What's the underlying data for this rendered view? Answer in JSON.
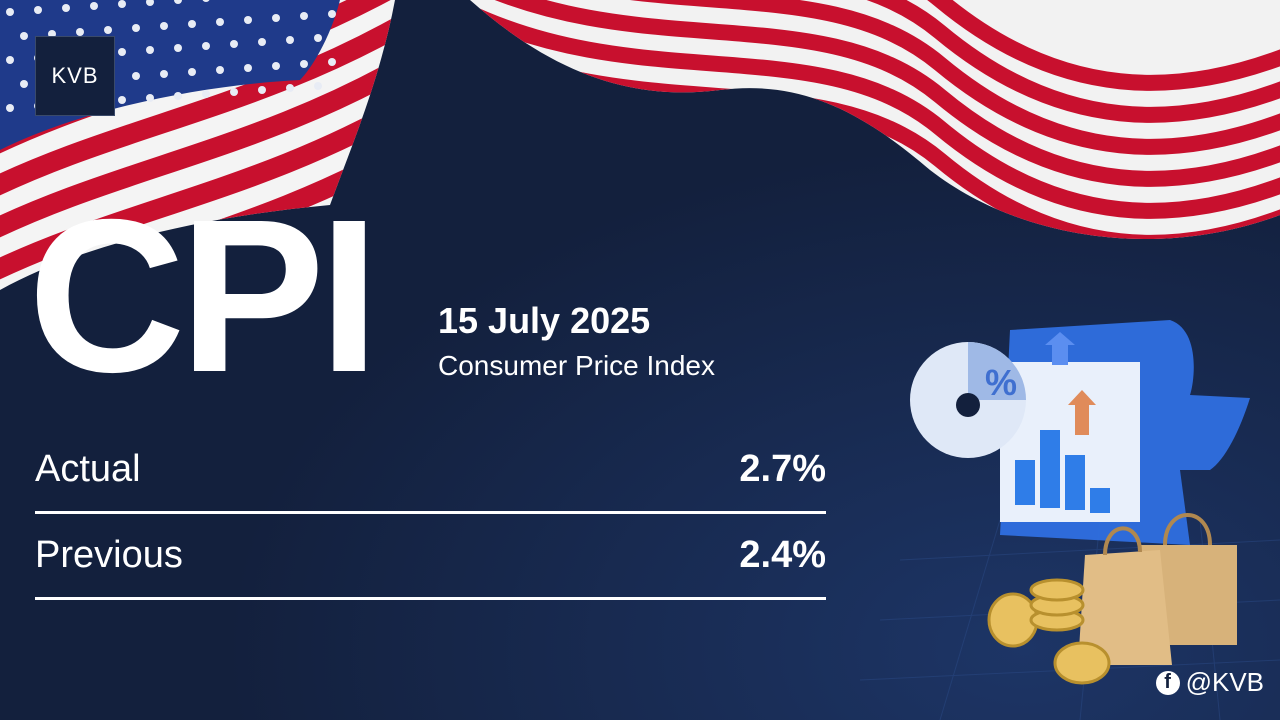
{
  "logo": "KVB",
  "headline": "CPI",
  "date": "15 July 2025",
  "subtitle": "Consumer Price Index",
  "rows": [
    {
      "label": "Actual",
      "value": "2.7%"
    },
    {
      "label": "Previous",
      "value": "2.4%"
    }
  ],
  "handle": "@KVB"
}
